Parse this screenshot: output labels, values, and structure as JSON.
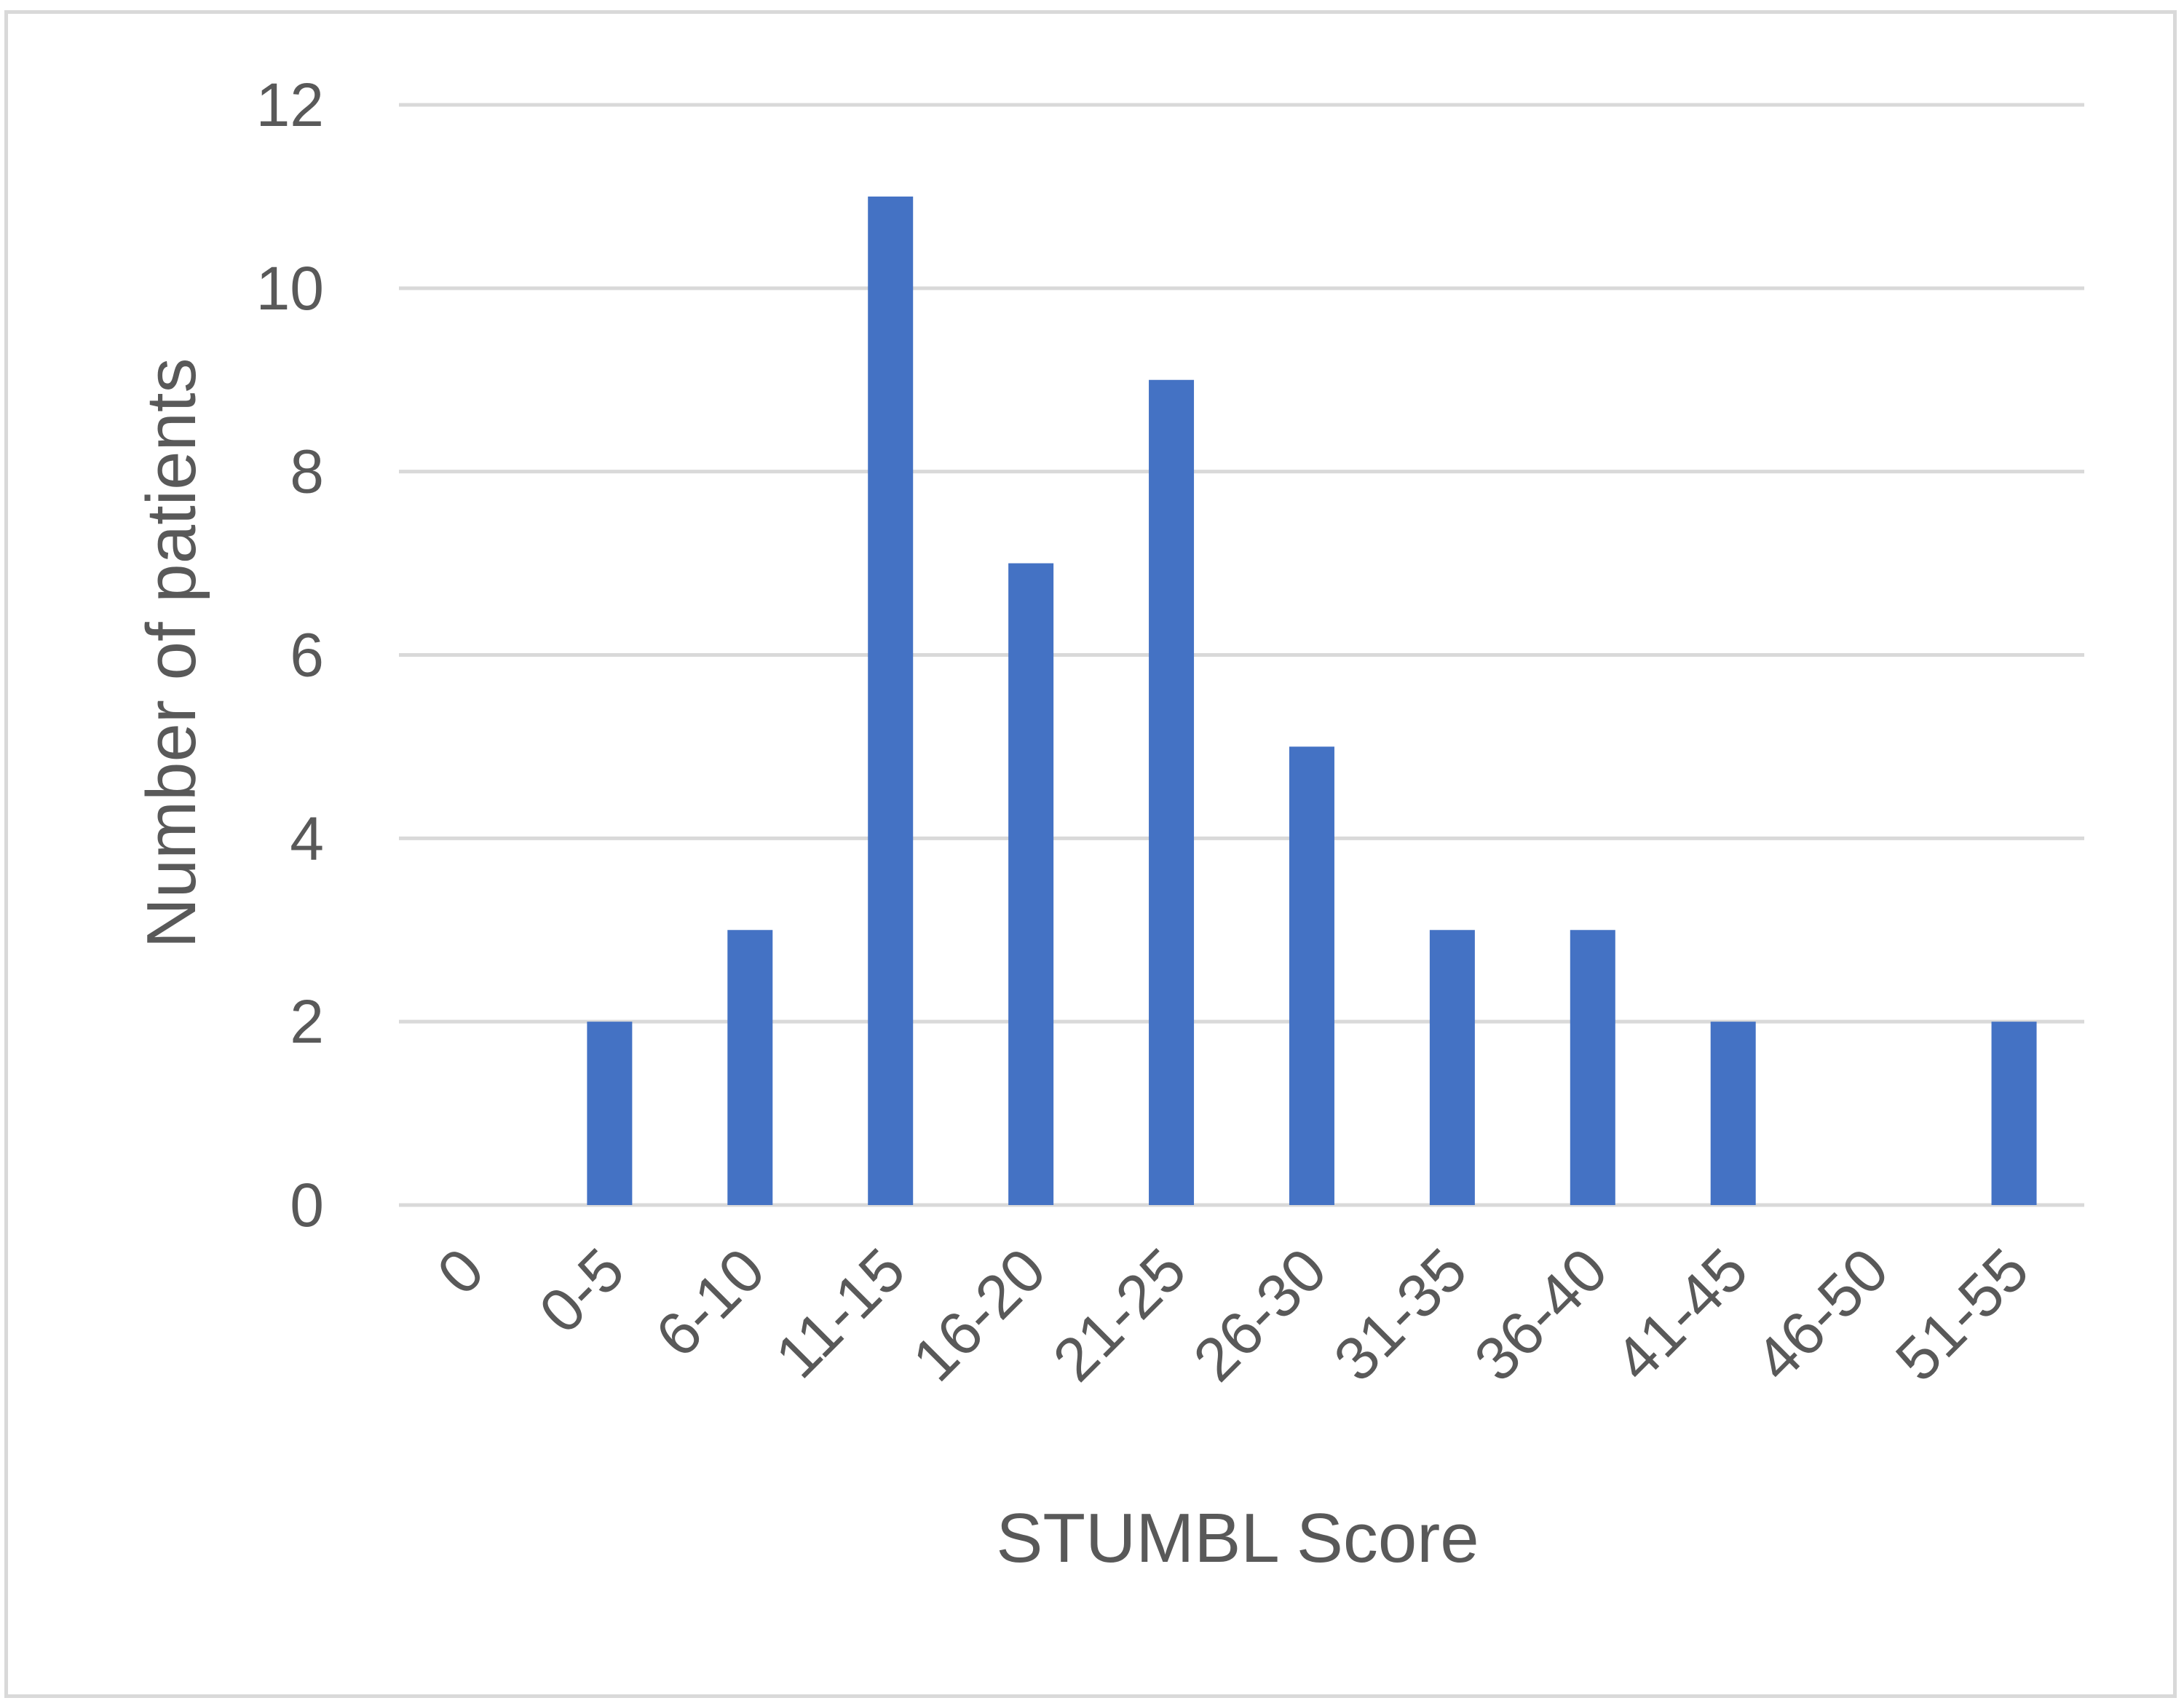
{
  "chart_data": {
    "type": "bar",
    "title": "",
    "xlabel": "STUMBL Score",
    "ylabel": "Number of patients",
    "categories": [
      "0",
      "0-5",
      "6-10",
      "11-15",
      "16-20",
      "21-25",
      "26-30",
      "31-35",
      "36-40",
      "41-45",
      "46-50",
      "51-55"
    ],
    "values": [
      0,
      2,
      3,
      11,
      7,
      9,
      5,
      3,
      3,
      2,
      0,
      2
    ],
    "ylim": [
      0,
      12
    ],
    "yticks": [
      0,
      2,
      4,
      6,
      8,
      10,
      12
    ],
    "grid": true,
    "legend": "none",
    "colors": {
      "bar": "#4472C4",
      "grid": "#d9d9d9",
      "text": "#595959",
      "frame": "#d9d9d9"
    }
  }
}
